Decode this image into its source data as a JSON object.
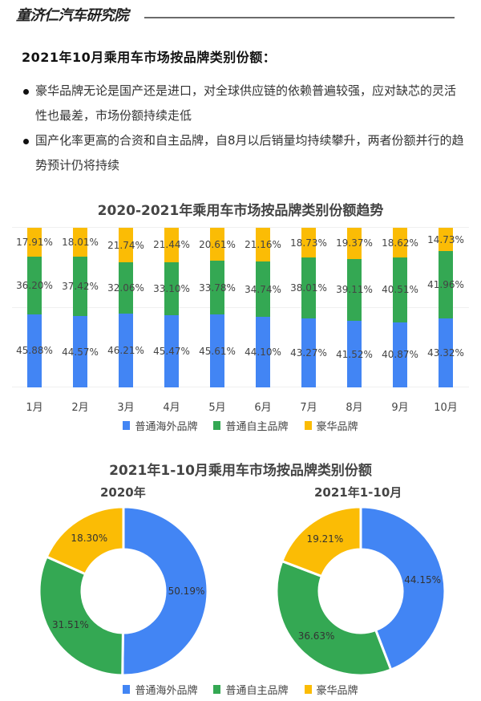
{
  "header": {
    "brand": "童济仁汽车研究院"
  },
  "section_title": "2021年10月乘用车市场按品牌类别份额：",
  "bullets": [
    "豪华品牌无论是国产还是进口，对全球供应链的依赖普遍较强，应对缺芯的灵活性也最差，市场份额持续走低",
    "国产化率更高的合资和自主品牌，自8月以后销量均持续攀升，两者份额并行的趋势预计仍将持续"
  ],
  "colors": {
    "overseas": "#4285F4",
    "domestic": "#34A853",
    "luxury": "#FBBC05"
  },
  "legend": [
    {
      "label": "普通海外品牌",
      "color": "#4285F4"
    },
    {
      "label": "普通自主品牌",
      "color": "#34A853"
    },
    {
      "label": "豪华品牌",
      "color": "#FBBC05"
    }
  ],
  "chart_data": [
    {
      "type": "bar",
      "stacked": true,
      "percent_stacked": true,
      "title": "2020-2021年乘用车市场按品牌类别份额趋势",
      "xlabel": "",
      "ylabel": "",
      "ylim": [
        0,
        100
      ],
      "grid": true,
      "legend_position": "bottom",
      "categories": [
        "1月",
        "2月",
        "3月",
        "4月",
        "5月",
        "6月",
        "7月",
        "8月",
        "9月",
        "10月"
      ],
      "series": [
        {
          "name": "普通海外品牌",
          "color": "#4285F4",
          "values": [
            45.88,
            44.57,
            46.21,
            45.47,
            45.61,
            44.1,
            43.27,
            41.52,
            40.87,
            43.32
          ],
          "labels": [
            "45.88%",
            "44.57%",
            "46.21%",
            "45.47%",
            "45.61%",
            "44.10%",
            "43.27%",
            "41.52%",
            "40.87%",
            "43.32%"
          ]
        },
        {
          "name": "普通自主品牌",
          "color": "#34A853",
          "values": [
            36.2,
            37.42,
            32.06,
            33.1,
            33.78,
            34.74,
            38.01,
            39.11,
            40.51,
            41.96
          ],
          "labels": [
            "36.20%",
            "37.42%",
            "32.06%",
            "33.10%",
            "33.78%",
            "34.74%",
            "38.01%",
            "39.11%",
            "40.51%",
            "41.96%"
          ]
        },
        {
          "name": "豪华品牌",
          "color": "#FBBC05",
          "values": [
            17.91,
            18.01,
            21.74,
            21.44,
            20.61,
            21.16,
            18.73,
            19.37,
            18.62,
            14.73
          ],
          "labels": [
            "17.91%",
            "18.01%",
            "21.74%",
            "21.44%",
            "20.61%",
            "21.16%",
            "18.73%",
            "19.37%",
            "18.62%",
            "14.73%"
          ]
        }
      ]
    },
    {
      "type": "pie",
      "donut": true,
      "title": "2021年1-10月乘用车市场按品牌类别份额",
      "subtitle": "2020年",
      "categories": [
        "普通海外品牌",
        "普通自主品牌",
        "豪华品牌"
      ],
      "values": [
        50.19,
        31.51,
        18.3
      ],
      "labels": [
        "50.19%",
        "31.51%",
        "18.30%"
      ],
      "colors": [
        "#4285F4",
        "#34A853",
        "#FBBC05"
      ],
      "legend_position": "bottom"
    },
    {
      "type": "pie",
      "donut": true,
      "title": "2021年1-10月乘用车市场按品牌类别份额",
      "subtitle": "2021年1-10月",
      "categories": [
        "普通海外品牌",
        "普通自主品牌",
        "豪华品牌"
      ],
      "values": [
        44.15,
        36.63,
        19.21
      ],
      "labels": [
        "44.15%",
        "36.63%",
        "19.21%"
      ],
      "colors": [
        "#4285F4",
        "#34A853",
        "#FBBC05"
      ],
      "legend_position": "bottom"
    }
  ]
}
